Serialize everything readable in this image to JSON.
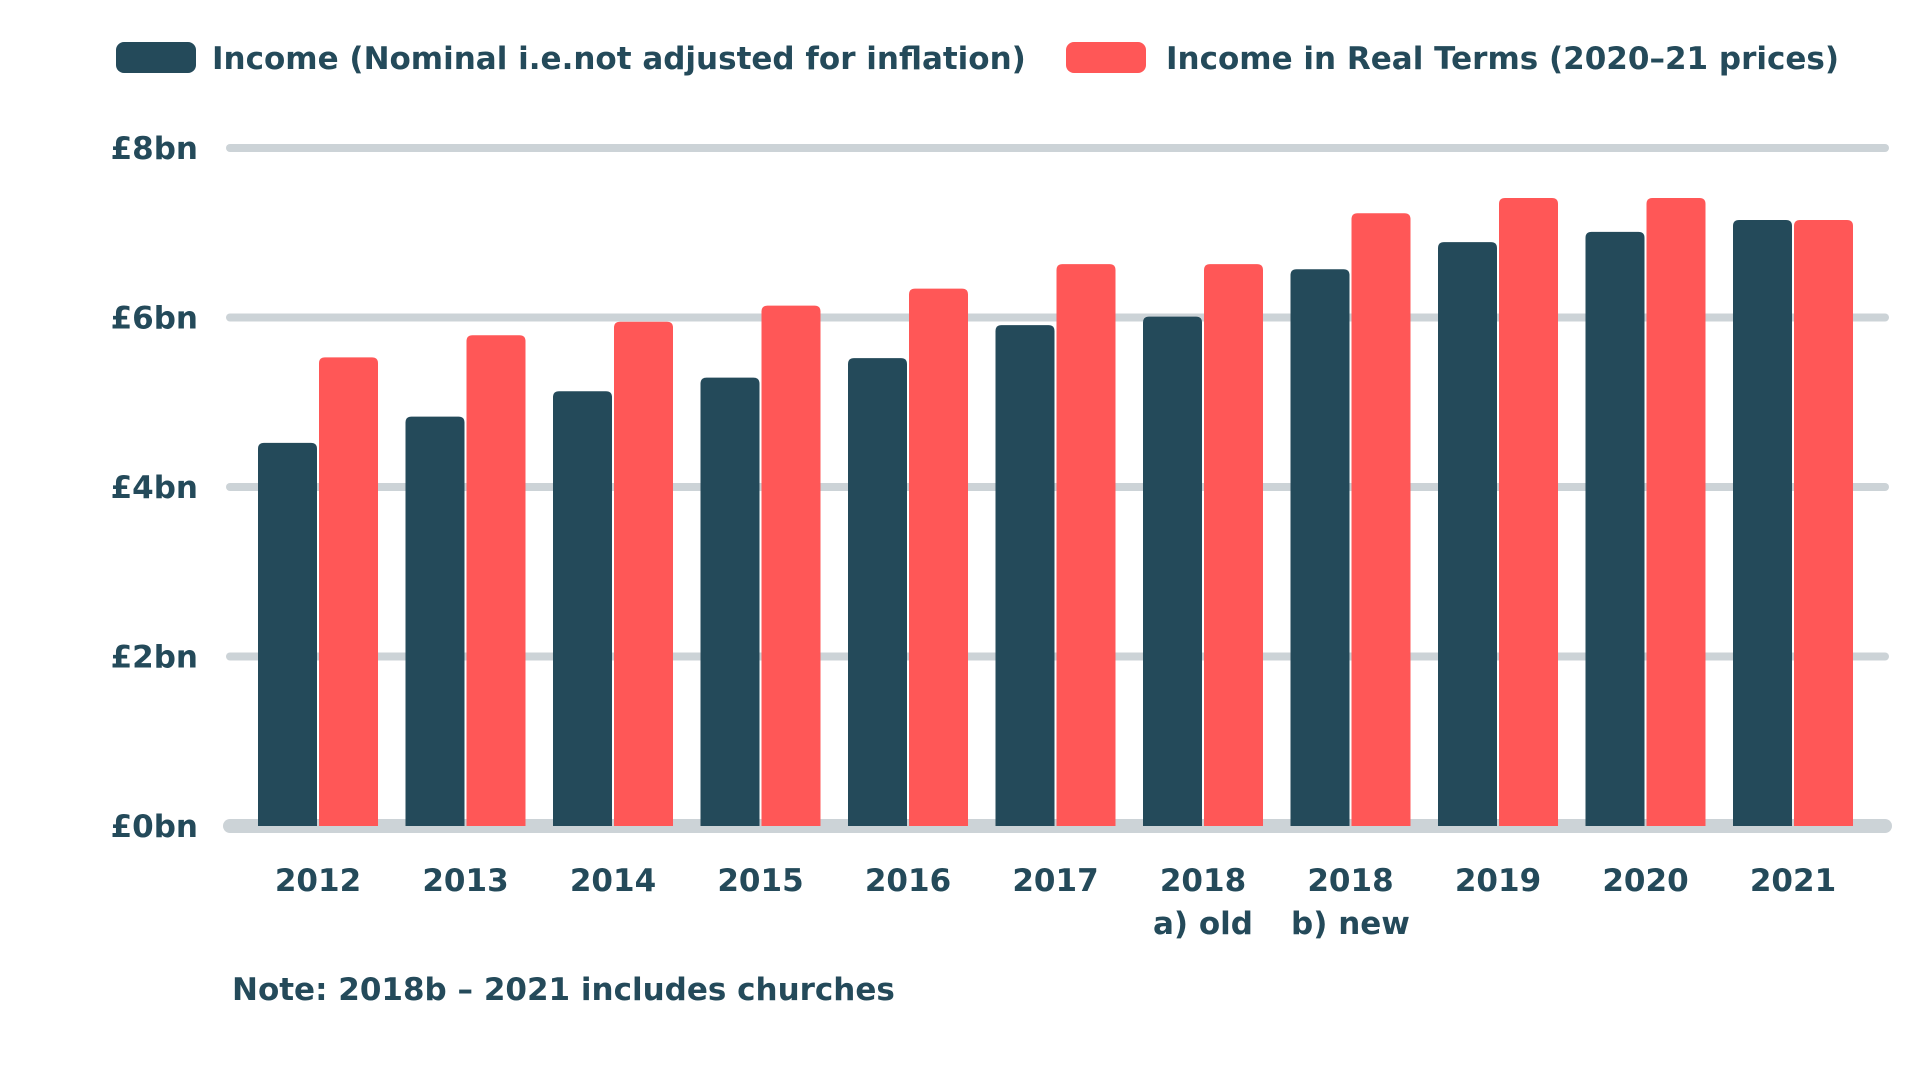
{
  "chart_data": {
    "type": "bar",
    "categories": [
      [
        "2012"
      ],
      [
        "2013"
      ],
      [
        "2014"
      ],
      [
        "2015"
      ],
      [
        "2016"
      ],
      [
        "2017"
      ],
      [
        "2018",
        "a) old"
      ],
      [
        "2018",
        "b) new"
      ],
      [
        "2019"
      ],
      [
        "2020"
      ],
      [
        "2021"
      ]
    ],
    "series": [
      {
        "name": "Income (Nominal i.e.not adjusted for inflation)",
        "color": "#244a5a",
        "values": [
          4.52,
          4.83,
          5.13,
          5.29,
          5.52,
          5.91,
          6.01,
          6.57,
          6.89,
          7.01,
          7.15
        ]
      },
      {
        "name": "Income in Real Terms (2020–21 prices)",
        "color": "#ff5757",
        "values": [
          5.53,
          5.79,
          5.95,
          6.14,
          6.34,
          6.63,
          6.63,
          7.23,
          7.41,
          7.41,
          7.15
        ]
      }
    ],
    "yticks": [
      "£0bn",
      "£2bn",
      "£4bn",
      "£6bn",
      "£8bn"
    ],
    "ylim": [
      0,
      8
    ],
    "grid": true,
    "legend_position": "top",
    "title": "",
    "xlabel": "",
    "ylabel": ""
  },
  "note": "Note: 2018b – 2021 includes churches",
  "colors": {
    "text": "#244a5a",
    "grid": "#ccd3d7",
    "background": "#ffffff"
  }
}
